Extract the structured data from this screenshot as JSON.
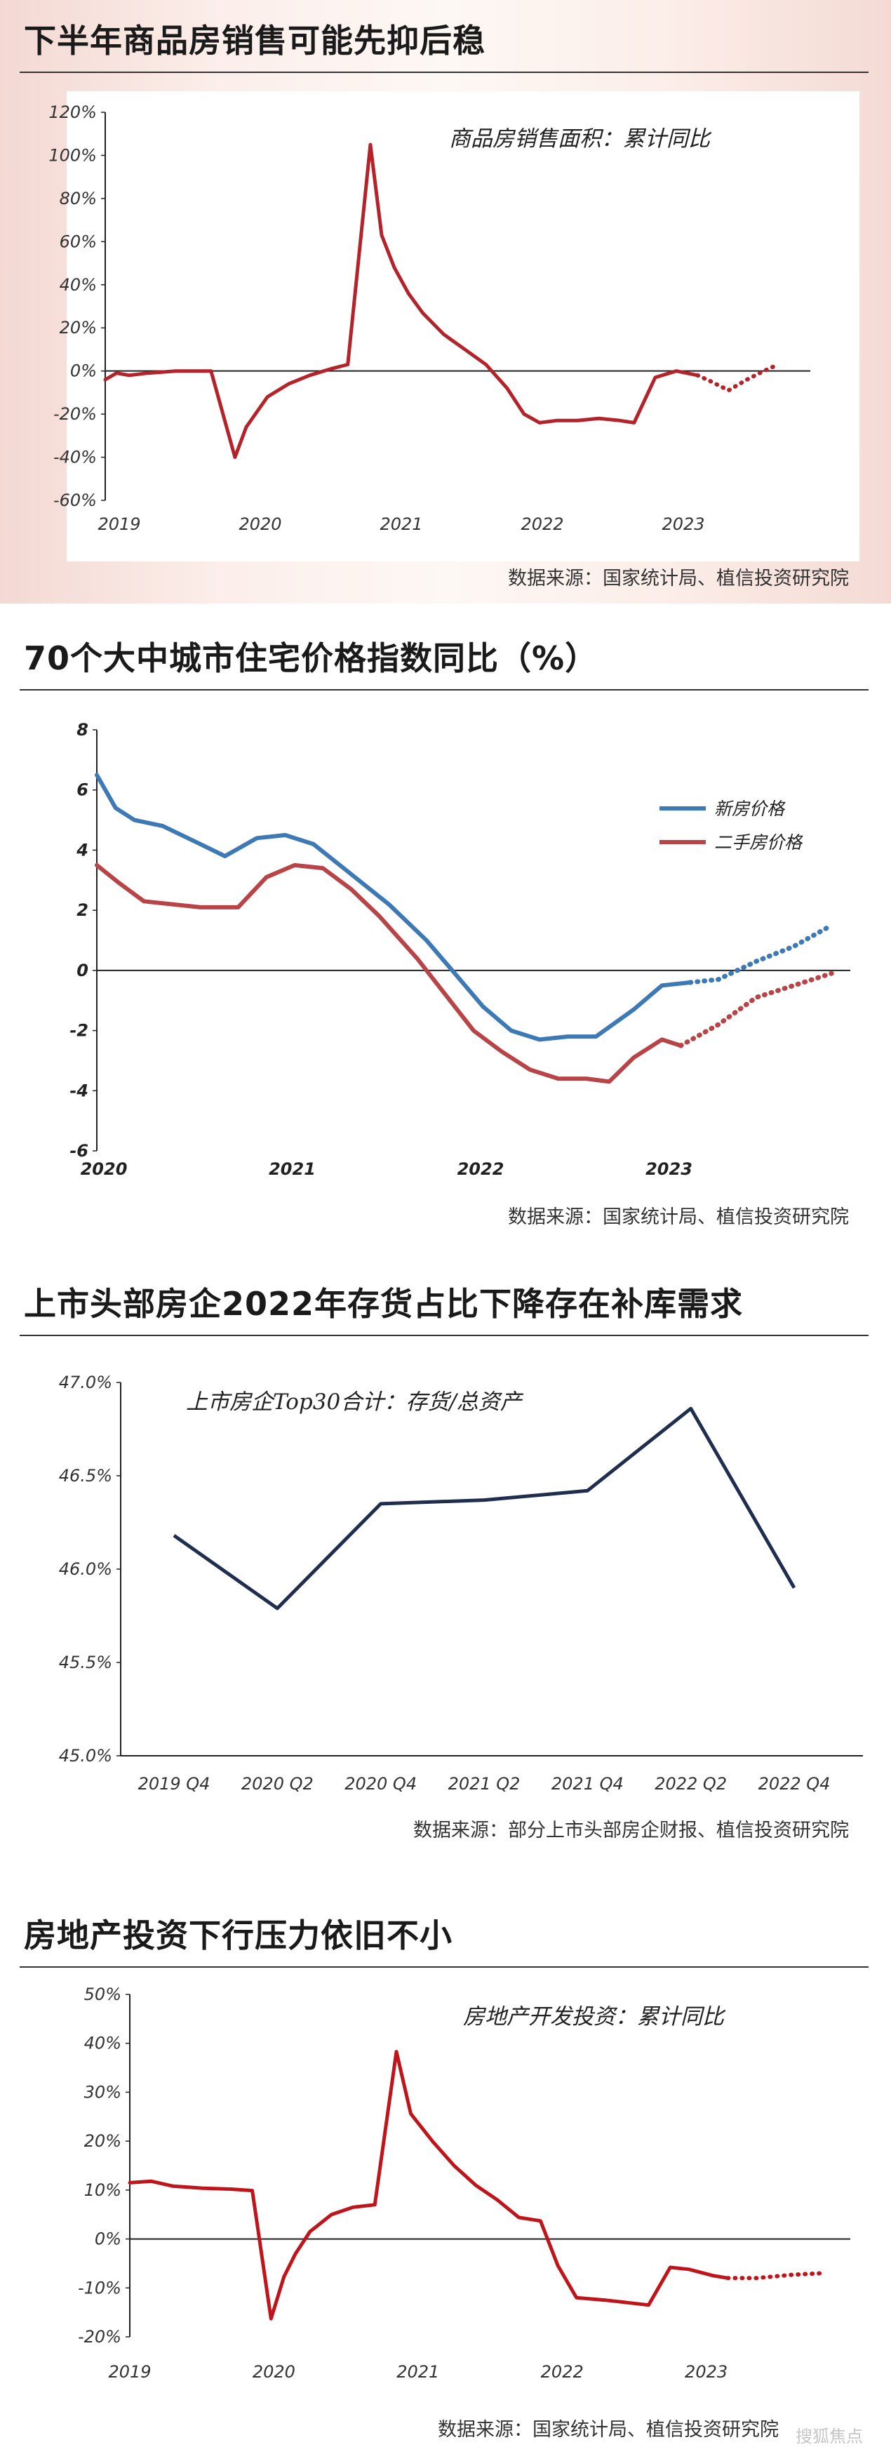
{
  "watermark": "搜狐焦点",
  "panels": [
    {
      "title": "下半年商品房销售可能先抑后稳",
      "note": "商品房销售面积：累计同比",
      "source": "数据来源：国家统计局、植信投资研究院",
      "chart_data": {
        "type": "line",
        "x_labels": [
          "2019",
          "2020",
          "2021",
          "2022",
          "2023"
        ],
        "y_ticks": [
          "120%",
          "100%",
          "80%",
          "60%",
          "40%",
          "20%",
          "0%",
          "-20%",
          "-40%",
          "-60%"
        ],
        "ylim": [
          -60,
          120
        ],
        "x_range": [
          2019.0,
          2024.0
        ],
        "series": [
          {
            "color": "#b4232a",
            "style": "solid",
            "points": [
              [
                2019.0,
                -4
              ],
              [
                2019.08,
                -1
              ],
              [
                2019.17,
                -2
              ],
              [
                2019.3,
                -1
              ],
              [
                2019.5,
                0
              ],
              [
                2019.75,
                0
              ],
              [
                2019.92,
                -40
              ],
              [
                2020.0,
                -26
              ],
              [
                2020.15,
                -12
              ],
              [
                2020.3,
                -6
              ],
              [
                2020.45,
                -2
              ],
              [
                2020.6,
                1
              ],
              [
                2020.72,
                3
              ],
              [
                2020.88,
                105
              ],
              [
                2020.96,
                63
              ],
              [
                2021.05,
                48
              ],
              [
                2021.15,
                36
              ],
              [
                2021.25,
                27
              ],
              [
                2021.4,
                17
              ],
              [
                2021.55,
                10
              ],
              [
                2021.7,
                3
              ],
              [
                2021.85,
                -8
              ],
              [
                2021.97,
                -20
              ],
              [
                2022.08,
                -24
              ],
              [
                2022.2,
                -23
              ],
              [
                2022.35,
                -23
              ],
              [
                2022.5,
                -22
              ],
              [
                2022.65,
                -23
              ],
              [
                2022.75,
                -24
              ],
              [
                2022.9,
                -3
              ],
              [
                2023.05,
                0
              ],
              [
                2023.2,
                -2
              ]
            ]
          },
          {
            "color": "#b4232a",
            "style": "dotted",
            "points": [
              [
                2023.2,
                -2
              ],
              [
                2023.3,
                -5
              ],
              [
                2023.42,
                -9
              ],
              [
                2023.55,
                -4
              ],
              [
                2023.67,
                0
              ],
              [
                2023.77,
                3
              ]
            ]
          }
        ]
      }
    },
    {
      "title": "70个大中城市住宅价格指数同比（%）",
      "source": "数据来源：国家统计局、植信投资研究院",
      "chart_data": {
        "type": "line",
        "x_labels": [
          "2020",
          "2021",
          "2022",
          "2023"
        ],
        "y_ticks": [
          "8",
          "6",
          "4",
          "2",
          "0",
          "-2",
          "-4",
          "-6"
        ],
        "ylim": [
          -6,
          8
        ],
        "x_range": [
          2020.0,
          2024.0
        ],
        "legend": [
          "新房价格",
          "二手房价格"
        ],
        "series": [
          {
            "name": "新房价格",
            "color": "#3d79b4",
            "style": "solid",
            "points": [
              [
                2020.0,
                6.5
              ],
              [
                2020.1,
                5.4
              ],
              [
                2020.2,
                5.0
              ],
              [
                2020.35,
                4.8
              ],
              [
                2020.55,
                4.2
              ],
              [
                2020.68,
                3.8
              ],
              [
                2020.85,
                4.4
              ],
              [
                2021.0,
                4.5
              ],
              [
                2021.15,
                4.2
              ],
              [
                2021.35,
                3.2
              ],
              [
                2021.55,
                2.2
              ],
              [
                2021.75,
                1.0
              ],
              [
                2021.9,
                -0.1
              ],
              [
                2022.05,
                -1.2
              ],
              [
                2022.2,
                -2.0
              ],
              [
                2022.35,
                -2.3
              ],
              [
                2022.5,
                -2.2
              ],
              [
                2022.65,
                -2.2
              ],
              [
                2022.85,
                -1.3
              ],
              [
                2023.0,
                -0.5
              ],
              [
                2023.15,
                -0.4
              ]
            ]
          },
          {
            "name": "新房价格",
            "color": "#3d79b4",
            "style": "dotted",
            "points": [
              [
                2023.15,
                -0.4
              ],
              [
                2023.3,
                -0.3
              ],
              [
                2023.5,
                0.3
              ],
              [
                2023.7,
                0.8
              ],
              [
                2023.9,
                1.5
              ]
            ]
          },
          {
            "name": "二手房价格",
            "color": "#b84447",
            "style": "solid",
            "points": [
              [
                2020.0,
                3.5
              ],
              [
                2020.12,
                2.9
              ],
              [
                2020.25,
                2.3
              ],
              [
                2020.4,
                2.2
              ],
              [
                2020.55,
                2.1
              ],
              [
                2020.75,
                2.1
              ],
              [
                2020.9,
                3.1
              ],
              [
                2021.05,
                3.5
              ],
              [
                2021.2,
                3.4
              ],
              [
                2021.35,
                2.7
              ],
              [
                2021.5,
                1.8
              ],
              [
                2021.7,
                0.4
              ],
              [
                2021.85,
                -0.8
              ],
              [
                2022.0,
                -2.0
              ],
              [
                2022.15,
                -2.7
              ],
              [
                2022.3,
                -3.3
              ],
              [
                2022.45,
                -3.6
              ],
              [
                2022.6,
                -3.6
              ],
              [
                2022.72,
                -3.7
              ],
              [
                2022.85,
                -2.9
              ],
              [
                2023.0,
                -2.3
              ],
              [
                2023.1,
                -2.5
              ]
            ]
          },
          {
            "name": "二手房价格",
            "color": "#b84447",
            "style": "dotted",
            "points": [
              [
                2023.1,
                -2.5
              ],
              [
                2023.3,
                -1.8
              ],
              [
                2023.5,
                -0.9
              ],
              [
                2023.7,
                -0.5
              ],
              [
                2023.9,
                -0.1
              ]
            ]
          }
        ]
      }
    },
    {
      "title": "上市头部房企2022年存货占比下降存在补库需求",
      "note": "上市房企Top30合计：存货/总资产",
      "source": "数据来源：部分上市头部房企财报、植信投资研究院",
      "chart_data": {
        "type": "line",
        "categories": [
          "2019 Q4",
          "2020 Q2",
          "2020 Q4",
          "2021 Q2",
          "2021 Q4",
          "2022 Q2",
          "2022 Q4"
        ],
        "values": [
          46.18,
          45.79,
          46.35,
          46.37,
          46.42,
          46.86,
          45.9
        ],
        "y_ticks": [
          "47.0%",
          "46.5%",
          "46.0%",
          "45.5%",
          "45.0%"
        ],
        "ylim": [
          45.0,
          47.0
        ],
        "color": "#1f2d4e"
      }
    },
    {
      "title": "房地产投资下行压力依旧不小",
      "note": "房地产开发投资：累计同比",
      "source": "数据来源：国家统计局、植信投资研究院",
      "chart_data": {
        "type": "line",
        "x_labels": [
          "2019",
          "2020",
          "2021",
          "2022",
          "2023"
        ],
        "y_ticks": [
          "50%",
          "40%",
          "30%",
          "20%",
          "10%",
          "0%",
          "-10%",
          "-20%"
        ],
        "ylim": [
          -20,
          50
        ],
        "x_range": [
          2019.0,
          2024.0
        ],
        "series": [
          {
            "color": "#c0141b",
            "style": "solid",
            "points": [
              [
                2019.0,
                11.5
              ],
              [
                2019.15,
                11.8
              ],
              [
                2019.3,
                10.8
              ],
              [
                2019.5,
                10.4
              ],
              [
                2019.7,
                10.2
              ],
              [
                2019.85,
                9.9
              ],
              [
                2019.98,
                -16.3
              ],
              [
                2020.07,
                -7.7
              ],
              [
                2020.15,
                -3
              ],
              [
                2020.25,
                1.5
              ],
              [
                2020.4,
                5
              ],
              [
                2020.55,
                6.5
              ],
              [
                2020.7,
                7
              ],
              [
                2020.85,
                38.3
              ],
              [
                2020.95,
                25.6
              ],
              [
                2021.1,
                20
              ],
              [
                2021.25,
                15
              ],
              [
                2021.4,
                11
              ],
              [
                2021.55,
                8
              ],
              [
                2021.7,
                4.4
              ],
              [
                2021.85,
                3.7
              ],
              [
                2021.97,
                -5.4
              ],
              [
                2022.1,
                -12
              ],
              [
                2022.3,
                -12.5
              ],
              [
                2022.45,
                -13
              ],
              [
                2022.6,
                -13.5
              ],
              [
                2022.75,
                -5.8
              ],
              [
                2022.88,
                -6.2
              ],
              [
                2023.05,
                -7.5
              ],
              [
                2023.15,
                -8.0
              ]
            ]
          },
          {
            "color": "#c0141b",
            "style": "dotted",
            "points": [
              [
                2023.15,
                -8.0
              ],
              [
                2023.35,
                -8.0
              ],
              [
                2023.6,
                -7.3
              ],
              [
                2023.8,
                -7.0
              ]
            ]
          }
        ]
      }
    }
  ]
}
